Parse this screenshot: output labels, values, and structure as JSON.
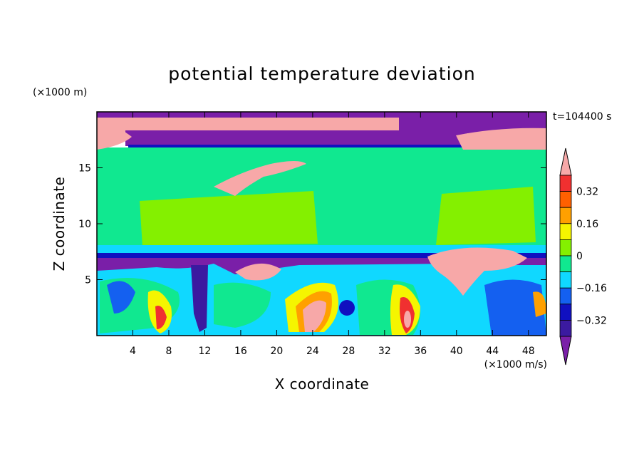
{
  "chart_data": {
    "type": "heatmap",
    "title": "potential temperature deviation",
    "xlabel": "X coordinate",
    "ylabel": "Z coordinate",
    "x_unit": "(×1000 m/s)",
    "y_unit": "(×1000 m)",
    "time_label": "t=104400 s",
    "xlim": [
      0,
      50
    ],
    "ylim": [
      0,
      20
    ],
    "x_ticks": [
      4,
      8,
      12,
      16,
      20,
      24,
      28,
      32,
      36,
      40,
      44,
      48
    ],
    "y_ticks": [
      5,
      10,
      15
    ],
    "colorbar": {
      "levels": [
        -0.48,
        -0.4,
        -0.32,
        -0.24,
        -0.16,
        -0.08,
        0,
        0.08,
        0.16,
        0.24,
        0.32,
        0.4
      ],
      "tick_labels": [
        "0.32",
        "0.16",
        "0",
        "−0.16",
        "−0.32"
      ],
      "tick_values": [
        0.32,
        0.16,
        0,
        -0.16,
        -0.32
      ],
      "colors": [
        "#7a1fa8",
        "#3b1aa0",
        "#1010c0",
        "#1460f0",
        "#10d8ff",
        "#10e890",
        "#84f000",
        "#f5f500",
        "#ffa000",
        "#ff6000",
        "#f03030",
        "#f7a8a8"
      ],
      "extend": "both"
    }
  }
}
